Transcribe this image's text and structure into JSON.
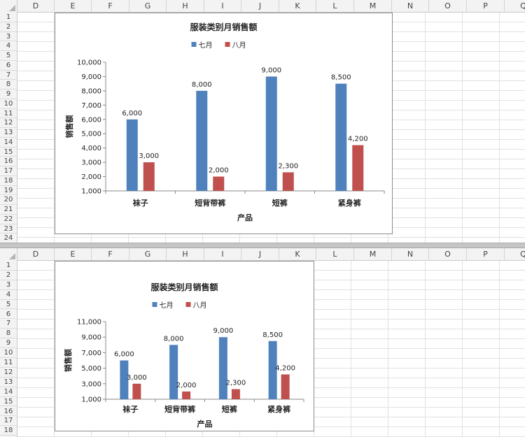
{
  "columns": [
    "D",
    "E",
    "F",
    "G",
    "H",
    "I",
    "J",
    "K",
    "L",
    "M",
    "N",
    "O",
    "P",
    "Q"
  ],
  "top_rows": [
    "1",
    "2",
    "3",
    "4",
    "5",
    "6",
    "7",
    "8",
    "9",
    "10",
    "11",
    "12",
    "13",
    "14",
    "15",
    "16",
    "17",
    "18",
    "19",
    "20",
    "21",
    "22",
    "23",
    "24"
  ],
  "bottom_rows": [
    "1",
    "2",
    "3",
    "4",
    "5",
    "6",
    "7",
    "8",
    "9",
    "10",
    "11",
    "12",
    "13",
    "14",
    "15",
    "16",
    "17",
    "18"
  ],
  "colors": {
    "july": "#4f81bd",
    "august": "#c0504d"
  },
  "chart_data": [
    {
      "type": "bar",
      "title": "服装类别月销售额",
      "xlabel": "产品",
      "ylabel": "销售额",
      "categories": [
        "袜子",
        "短背带裤",
        "短裤",
        "紧身裤"
      ],
      "series": [
        {
          "name": "七月",
          "values": [
            6000,
            8000,
            9000,
            8500
          ],
          "labels": [
            "6,000",
            "8,000",
            "9,000",
            "8,500"
          ]
        },
        {
          "name": "八月",
          "values": [
            3000,
            2000,
            2300,
            4200
          ],
          "labels": [
            "3,000",
            "2,000",
            "2,300",
            "4,200"
          ]
        }
      ],
      "ylim": [
        1000,
        10000
      ],
      "yticks": [
        "1,000",
        "2,000",
        "3,000",
        "4,000",
        "5,000",
        "6,000",
        "7,000",
        "8,000",
        "9,000",
        "10,000"
      ],
      "legend": "top",
      "grid": false
    },
    {
      "type": "bar",
      "title": "服装类别月销售额",
      "xlabel": "产品",
      "ylabel": "销售额",
      "categories": [
        "袜子",
        "短背带裤",
        "短裤",
        "紧身裤"
      ],
      "series": [
        {
          "name": "七月",
          "values": [
            6000,
            8000,
            9000,
            8500
          ],
          "labels": [
            "6,000",
            "8,000",
            "9,000",
            "8,500"
          ]
        },
        {
          "name": "八月",
          "values": [
            3000,
            2000,
            2300,
            4200
          ],
          "labels": [
            "3,000",
            "2,000",
            "2,300",
            "4,200"
          ]
        }
      ],
      "ylim": [
        1000,
        11000
      ],
      "yticks": [
        "1,000",
        "3,000",
        "5,000",
        "7,000",
        "9,000",
        "11,000"
      ],
      "legend": "top",
      "grid": false
    }
  ]
}
